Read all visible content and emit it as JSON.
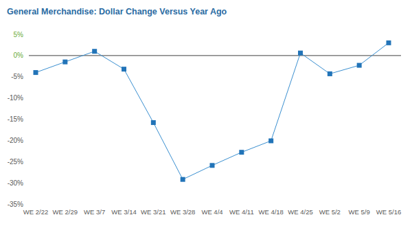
{
  "chart_data": {
    "type": "line",
    "title": "General Merchandise: Dollar Change Versus Year Ago",
    "categories": [
      "WE 2/22",
      "WE 2/29",
      "WE 3/7",
      "WE 3/14",
      "WE 3/21",
      "WE 3/28",
      "WE 4/4",
      "WE 4/11",
      "WE 4/18",
      "WE 4/25",
      "WE 5/2",
      "WE 5/9",
      "WE 5/16"
    ],
    "values": [
      -4,
      -1.5,
      1,
      -3.2,
      -15.8,
      -29.2,
      -25.9,
      -22.8,
      -20.1,
      0.6,
      -4.3,
      -2.3,
      3
    ],
    "color": "#3a8fd0",
    "marker": "square",
    "ylim": [
      -35,
      5
    ],
    "yticks": [
      {
        "value": 5,
        "label": "5%"
      },
      {
        "value": 0,
        "label": "0%"
      },
      {
        "value": -5,
        "label": "-5%"
      },
      {
        "value": -10,
        "label": "-10%"
      },
      {
        "value": -15,
        "label": "-15%"
      },
      {
        "value": -20,
        "label": "-20%"
      },
      {
        "value": -25,
        "label": "-25%"
      },
      {
        "value": -30,
        "label": "-30%"
      },
      {
        "value": -35,
        "label": "-35%"
      }
    ],
    "grid": false
  }
}
